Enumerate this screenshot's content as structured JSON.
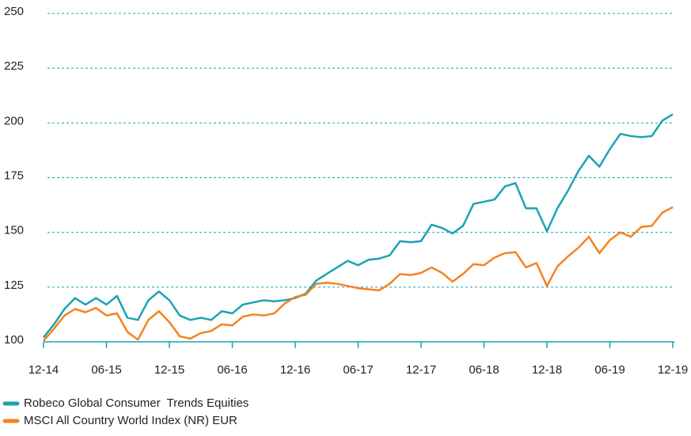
{
  "chart_data": {
    "type": "line",
    "categories": [
      "12-14",
      null,
      null,
      null,
      null,
      null,
      "06-15",
      null,
      null,
      null,
      null,
      null,
      "12-15",
      null,
      null,
      null,
      null,
      null,
      "06-16",
      null,
      null,
      null,
      null,
      null,
      "12-16",
      null,
      null,
      null,
      null,
      null,
      "06-17",
      null,
      null,
      null,
      null,
      null,
      "12-17",
      null,
      null,
      null,
      null,
      null,
      "06-18",
      null,
      null,
      null,
      null,
      null,
      "12-18",
      null,
      null,
      null,
      null,
      null,
      "06-19",
      null,
      null,
      null,
      null,
      null,
      "12-19"
    ],
    "series": [
      {
        "name": "Robeco Global Consumer  Trends Equities",
        "color": "#1aa3b3",
        "values": [
          102,
          108,
          115,
          120,
          117,
          120,
          117,
          121,
          111,
          110,
          119,
          123,
          119,
          112,
          110,
          111,
          110,
          114,
          113,
          117,
          118,
          119,
          118.5,
          119,
          120,
          122,
          128,
          131,
          134,
          137,
          135,
          137.5,
          138,
          139.5,
          146,
          145.5,
          146,
          153.5,
          152,
          149.5,
          153,
          163,
          164,
          165,
          171,
          172.5,
          161,
          161,
          150.5,
          161,
          169,
          178,
          185,
          180,
          188,
          195,
          194,
          193.5,
          194,
          201,
          204
        ]
      },
      {
        "name": "MSCI All Country World Index (NR) EUR",
        "color": "#f58220",
        "values": [
          100.5,
          106,
          112,
          115,
          113.5,
          115.5,
          112,
          113,
          104.5,
          101,
          110,
          114,
          109,
          102.5,
          101.5,
          104,
          105,
          108,
          107.5,
          111.5,
          112.5,
          112,
          113,
          117.5,
          120.5,
          121.5,
          126.5,
          127,
          126.5,
          125.5,
          124.5,
          124,
          123.5,
          126.5,
          131,
          130.5,
          131.5,
          134,
          131.5,
          127.5,
          131,
          135.5,
          135,
          138.5,
          140.5,
          141,
          134,
          136,
          125.5,
          134.5,
          139,
          143,
          148,
          140.5,
          146.5,
          150,
          148,
          152.5,
          153,
          159,
          161.5
        ]
      }
    ],
    "ylim": [
      100,
      250
    ],
    "yticks": [
      100,
      125,
      150,
      175,
      200,
      225,
      250
    ],
    "grid": true
  }
}
